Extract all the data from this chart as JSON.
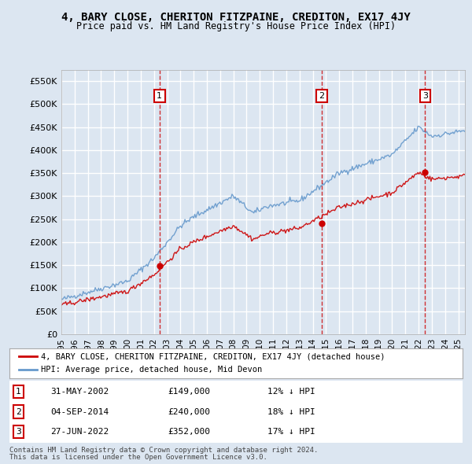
{
  "title": "4, BARY CLOSE, CHERITON FITZPAINE, CREDITON, EX17 4JY",
  "subtitle": "Price paid vs. HM Land Registry's House Price Index (HPI)",
  "bg_color": "#dce6f1",
  "plot_bg_color": "#dce6f1",
  "grid_color": "#ffffff",
  "hpi_color": "#6699cc",
  "price_color": "#cc0000",
  "ylim": [
    0,
    575000
  ],
  "yticks": [
    0,
    50000,
    100000,
    150000,
    200000,
    250000,
    300000,
    350000,
    400000,
    450000,
    500000,
    550000
  ],
  "ylabel_format": "£{0}K",
  "xstart": 1995.0,
  "xend": 2025.5,
  "sales": [
    {
      "date": 2002.42,
      "price": 149000,
      "label": "1"
    },
    {
      "date": 2014.67,
      "price": 240000,
      "label": "2"
    },
    {
      "date": 2022.49,
      "price": 352000,
      "label": "3"
    }
  ],
  "sale_labels": [
    {
      "num": "1",
      "date": "31-MAY-2002",
      "price": "£149,000",
      "hpi": "12% ↓ HPI"
    },
    {
      "num": "2",
      "date": "04-SEP-2014",
      "price": "£240,000",
      "hpi": "18% ↓ HPI"
    },
    {
      "num": "3",
      "date": "27-JUN-2022",
      "price": "£352,000",
      "hpi": "17% ↓ HPI"
    }
  ],
  "legend_line1": "4, BARY CLOSE, CHERITON FITZPAINE, CREDITON, EX17 4JY (detached house)",
  "legend_line2": "HPI: Average price, detached house, Mid Devon",
  "footer1": "Contains HM Land Registry data © Crown copyright and database right 2024.",
  "footer2": "This data is licensed under the Open Government Licence v3.0."
}
